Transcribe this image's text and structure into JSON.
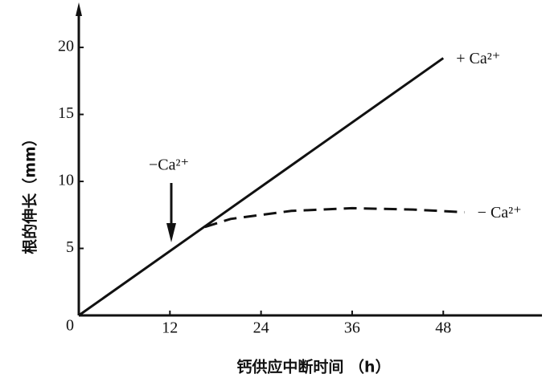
{
  "chart_data": {
    "type": "line",
    "xlabel": "钙供应中断时间 （h）",
    "ylabel": "根的伸长（mm）",
    "xlim": [
      0,
      61
    ],
    "ylim": [
      0,
      23
    ],
    "xticks": [
      12,
      24,
      36,
      48
    ],
    "yticks": [
      0,
      5,
      10,
      15,
      20
    ],
    "grid": false,
    "annotations": [
      {
        "text": "−Ca²⁺"
      }
    ],
    "series": [
      {
        "name": "+ Ca²⁺",
        "color": "#111111",
        "style": "solid",
        "x": [
          0,
          48
        ],
        "values": [
          0,
          19.2
        ]
      },
      {
        "name": "− Ca²⁺",
        "color": "#111111",
        "style": "dashed",
        "x": [
          16.6,
          20,
          28,
          36,
          44,
          50.8
        ],
        "values": [
          6.6,
          7.2,
          7.8,
          8.0,
          7.9,
          7.7
        ]
      }
    ]
  }
}
